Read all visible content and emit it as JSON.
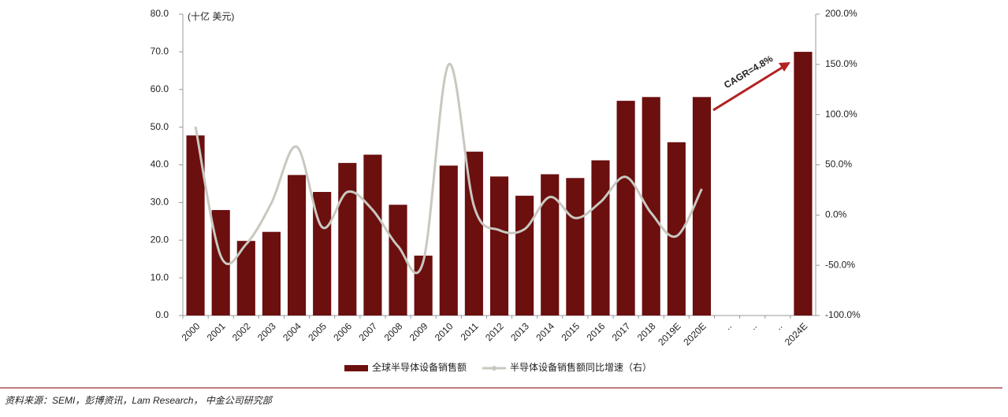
{
  "chart_data": {
    "type": "bar_line",
    "unit_label": "(十亿 美元)",
    "annotation": "CAGR=4.8%",
    "source": "资料来源：SEMI，彭博资讯，Lam Research， 中金公司研究部",
    "categories": [
      "2000",
      "2001",
      "2002",
      "2003",
      "2004",
      "2005",
      "2006",
      "2007",
      "2008",
      "2009",
      "2010",
      "2011",
      "2012",
      "2013",
      "2014",
      "2015",
      "2016",
      "2017",
      "2018",
      "2019E",
      "2020E",
      "..",
      "..",
      "..",
      "2024E"
    ],
    "series": [
      {
        "name": "全球半导体设备销售额",
        "type": "bar",
        "color": "#6b0f0f",
        "values": [
          47.8,
          28.0,
          19.8,
          22.2,
          37.3,
          32.8,
          40.5,
          42.7,
          29.4,
          15.9,
          39.8,
          43.5,
          36.9,
          31.8,
          37.5,
          36.5,
          41.2,
          57.0,
          58.0,
          46.0,
          58.0,
          null,
          null,
          null,
          70.0
        ]
      },
      {
        "name": "半导体设备销售额同比增速（右）",
        "type": "line",
        "axis": "y2",
        "color": "#c8c8c0",
        "values": [
          88,
          -41,
          -29,
          12,
          68,
          -12,
          23,
          5,
          -31,
          -46,
          150,
          9,
          -15,
          -14,
          18,
          -3,
          13,
          38,
          2,
          -21,
          26,
          null,
          null,
          null,
          null
        ]
      }
    ],
    "ylim": [
      0,
      80
    ],
    "yticks": [
      {
        "value": 0,
        "label": "0.0"
      },
      {
        "value": 10,
        "label": "10.0"
      },
      {
        "value": 20,
        "label": "20.0"
      },
      {
        "value": 30,
        "label": "30.0"
      },
      {
        "value": 40,
        "label": "40.0"
      },
      {
        "value": 50,
        "label": "50.0"
      },
      {
        "value": 60,
        "label": "60.0"
      },
      {
        "value": 70,
        "label": "70.0"
      },
      {
        "value": 80,
        "label": "80.0"
      }
    ],
    "y2lim": [
      -100,
      200
    ],
    "y2ticks": [
      {
        "value": -100,
        "label": "-100.0%"
      },
      {
        "value": -50,
        "label": "-50.0%"
      },
      {
        "value": 0,
        "label": "0.0%"
      },
      {
        "value": 50,
        "label": "50.0%"
      },
      {
        "value": 100,
        "label": "100.0%"
      },
      {
        "value": 150,
        "label": "150.0%"
      },
      {
        "value": 200,
        "label": "200.0%"
      }
    ],
    "grid": false
  }
}
